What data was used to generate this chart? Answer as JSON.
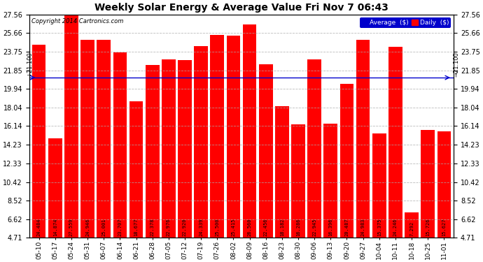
{
  "title": "Weekly Solar Energy & Average Value Fri Nov 7 06:43",
  "copyright": "Copyright 2014 Cartronics.com",
  "categories": [
    "05-10",
    "05-17",
    "05-24",
    "05-31",
    "06-07",
    "06-14",
    "06-21",
    "06-28",
    "07-05",
    "07-12",
    "07-19",
    "07-26",
    "08-02",
    "08-09",
    "08-16",
    "08-23",
    "08-30",
    "09-06",
    "09-13",
    "09-20",
    "09-27",
    "10-04",
    "10-11",
    "10-18",
    "10-25",
    "11-01"
  ],
  "values": [
    24.484,
    14.874,
    27.559,
    24.946,
    25.001,
    23.707,
    18.677,
    22.378,
    22.976,
    22.92,
    24.339,
    25.5,
    25.415,
    26.56,
    22.456,
    18.182,
    16.286,
    22.945,
    16.396,
    20.487,
    24.983,
    15.375,
    24.246,
    7.292,
    15.726,
    15.627
  ],
  "average": 21.1,
  "bar_color": "#ff0000",
  "average_line_color": "#0000cc",
  "background_color": "#ffffff",
  "grid_color": "#aaaaaa",
  "ylim_min": 4.71,
  "ylim_max": 27.56,
  "yticks": [
    4.71,
    6.62,
    8.52,
    10.42,
    12.33,
    14.23,
    16.14,
    18.04,
    19.94,
    21.85,
    23.75,
    25.66,
    27.56
  ],
  "legend_avg_color": "#0000cc",
  "legend_daily_color": "#ff0000",
  "legend_avg_text": "Average  ($)",
  "legend_daily_text": "Daily  ($)",
  "label_fontsize": 5.0,
  "title_fontsize": 10,
  "tick_fontsize": 7,
  "bar_bottom": 4.71
}
